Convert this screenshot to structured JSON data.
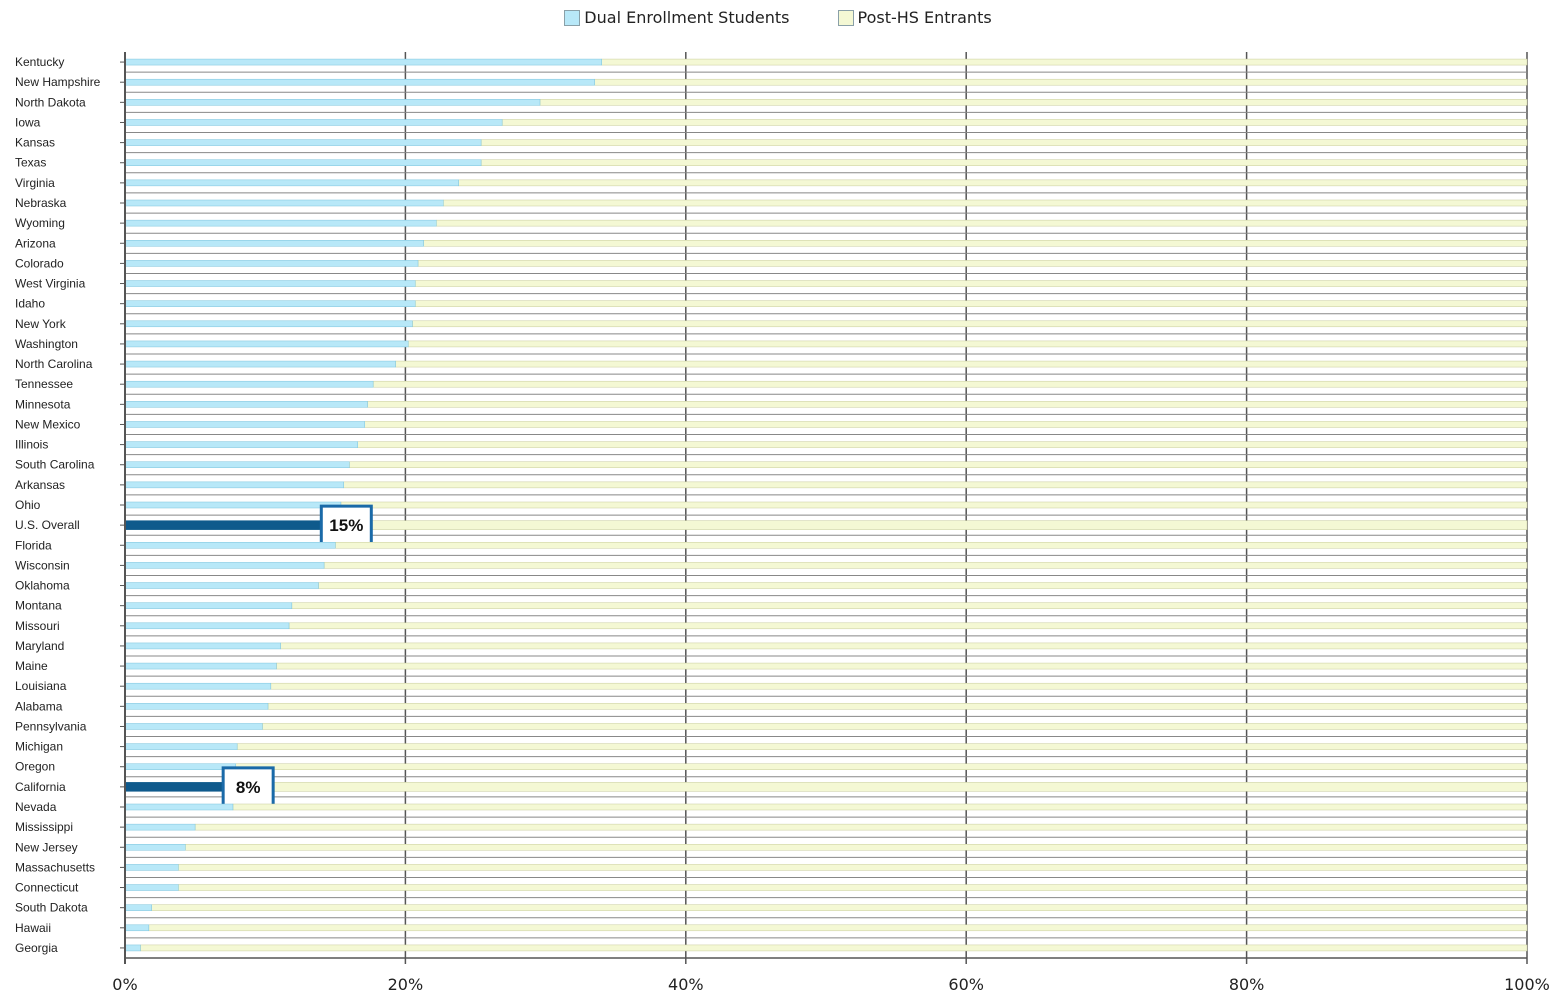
{
  "colors": {
    "dual_enrollment": "#b8e8f8",
    "post_hs": "#f4f8d4",
    "highlight": "#0f5a8c",
    "label_border": "#1a6aa8",
    "grid": "#555555"
  },
  "legend": {
    "dual_label": "Dual Enrollment Students",
    "posths_label": "Post-HS Entrants"
  },
  "chart_data": {
    "type": "bar",
    "orientation": "horizontal",
    "stacked": true,
    "percent_stacked": true,
    "grid": true,
    "legend_position": "top",
    "xlim": [
      0,
      100
    ],
    "x_ticks": [
      "0%",
      "20%",
      "40%",
      "60%",
      "80%",
      "100%"
    ],
    "categories": [
      "Kentucky",
      "New Hampshire",
      "North Dakota",
      "Iowa",
      "Kansas",
      "Texas",
      "Virginia",
      "Nebraska",
      "Wyoming",
      "Arizona",
      "Colorado",
      "West Virginia",
      "Idaho",
      "New York",
      "Washington",
      "North Carolina",
      "Tennessee",
      "Minnesota",
      "New Mexico",
      "Illinois",
      "South Carolina",
      "Arkansas",
      "Ohio",
      "U.S. Overall",
      "Florida",
      "Wisconsin",
      "Oklahoma",
      "Montana",
      "Missouri",
      "Maryland",
      "Maine",
      "Louisiana",
      "Alabama",
      "Pennsylvania",
      "Michigan",
      "Oregon",
      "California",
      "Nevada",
      "Mississippi",
      "New Jersey",
      "Massachusetts",
      "Connecticut",
      "South Dakota",
      "Hawaii",
      "Georgia"
    ],
    "series": [
      {
        "name": "Dual Enrollment Students",
        "values": [
          34,
          33.5,
          29.6,
          26.9,
          25.4,
          25.4,
          23.8,
          22.7,
          22.2,
          21.3,
          20.9,
          20.7,
          20.7,
          20.5,
          20.2,
          19.3,
          17.7,
          17.3,
          17.1,
          16.6,
          16,
          15.6,
          15.4,
          15,
          15,
          14.2,
          13.8,
          11.9,
          11.7,
          11.1,
          10.8,
          10.4,
          10.2,
          9.8,
          8,
          7.9,
          8,
          7.7,
          5,
          4.3,
          3.8,
          3.8,
          1.9,
          1.7,
          1.1
        ]
      },
      {
        "name": "Post-HS Entrants",
        "values": [
          66,
          66.5,
          70.4,
          73.1,
          74.6,
          74.6,
          76.2,
          77.3,
          77.8,
          78.7,
          79.1,
          79.3,
          79.3,
          79.5,
          79.8,
          80.7,
          82.3,
          82.7,
          82.9,
          83.4,
          84,
          84.4,
          84.6,
          85,
          85,
          85.8,
          86.2,
          88.1,
          88.3,
          88.9,
          89.2,
          89.6,
          89.8,
          90.2,
          92,
          92.1,
          92,
          92.3,
          95,
          95.7,
          96.2,
          96.2,
          98.1,
          98.3,
          98.9
        ]
      }
    ],
    "highlighted": [
      {
        "category": "U.S. Overall",
        "label": "15%"
      },
      {
        "category": "California",
        "label": "8%"
      }
    ]
  }
}
